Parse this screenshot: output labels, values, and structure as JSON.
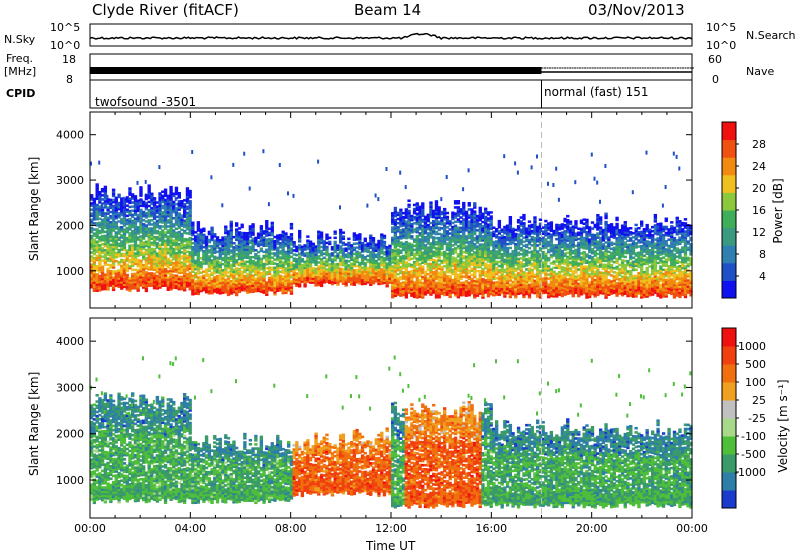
{
  "header": {
    "station": "Clyde River (fitACF)",
    "beam": "Beam 14",
    "date": "03/Nov/2013"
  },
  "strips": {
    "nsky_label": "N.Sky",
    "nsky_ticks": [
      "10^5",
      "10^0"
    ],
    "nsearch_label": "N.Search",
    "nsearch_ticks": [
      "10^5",
      "10^0"
    ],
    "freq_label": "Freq.",
    "freq_unit": "[MHz]",
    "freq_ticks": [
      "18",
      "8"
    ],
    "nave_label": "Nave",
    "nave_ticks": [
      "60",
      "0"
    ],
    "cpid_label": "CPID",
    "cpid_segments": [
      "twofsound -3501",
      "normal (fast) 151"
    ]
  },
  "chart_data": [
    {
      "type": "heatmap",
      "parameter": "Power",
      "ylabel": "Slant Range [km]",
      "yticks": [
        "4000",
        "3000",
        "2000",
        "1000"
      ],
      "ylim": [
        180,
        4500
      ],
      "xlim": [
        "00:00",
        "24:00"
      ],
      "colorbar_label": "Power [dB]",
      "colorbar_ticks": [
        "28",
        "24",
        "20",
        "16",
        "12",
        "8",
        "4"
      ],
      "colorbar_range": [
        0,
        32
      ],
      "colorbar_colors": [
        "#1010f0",
        "#2050c8",
        "#2f7fb0",
        "#3a9a80",
        "#3fae5a",
        "#8cc83c",
        "#f0c020",
        "#f08a10",
        "#f05010",
        "#f01010"
      ],
      "echo_bands_km": [
        {
          "t": [
            0,
            4
          ],
          "lo": 600,
          "hi": 2700
        },
        {
          "t": [
            4,
            8
          ],
          "lo": 500,
          "hi": 1900
        },
        {
          "t": [
            8,
            12
          ],
          "lo": 700,
          "hi": 1700
        },
        {
          "t": [
            12,
            16
          ],
          "lo": 450,
          "hi": 2400
        },
        {
          "t": [
            16,
            24
          ],
          "lo": 450,
          "hi": 2100
        }
      ]
    },
    {
      "type": "heatmap",
      "parameter": "Velocity",
      "ylabel": "Slant Range [km]",
      "yticks": [
        "4000",
        "3000",
        "2000",
        "1000"
      ],
      "ylim": [
        180,
        4500
      ],
      "xlim": [
        "00:00",
        "24:00"
      ],
      "xticks": [
        "00:00",
        "04:00",
        "08:00",
        "12:00",
        "16:00",
        "20:00",
        "00:00"
      ],
      "xlabel": "Time UT",
      "colorbar_label": "Velocity [m s⁻¹]",
      "colorbar_ticks": [
        "1000",
        "500",
        "100",
        "25",
        "-25",
        "-100",
        "-500",
        "-1000"
      ],
      "colorbar_colors": [
        "#1a3ccc",
        "#2d7fa8",
        "#3a9a6a",
        "#4fbf3a",
        "#a8d88a",
        "#c0c0c0",
        "#f0a020",
        "#f07010",
        "#f04010",
        "#f01010"
      ],
      "echo_bands_km": [
        {
          "t": [
            0,
            4
          ],
          "lo": 550,
          "hi": 2700
        },
        {
          "t": [
            4,
            8
          ],
          "lo": 550,
          "hi": 1800
        },
        {
          "t": [
            8,
            12
          ],
          "lo": 700,
          "hi": 1900
        },
        {
          "t": [
            12,
            16
          ],
          "lo": 450,
          "hi": 2500
        },
        {
          "t": [
            16,
            24
          ],
          "lo": 450,
          "hi": 2100
        }
      ]
    }
  ]
}
